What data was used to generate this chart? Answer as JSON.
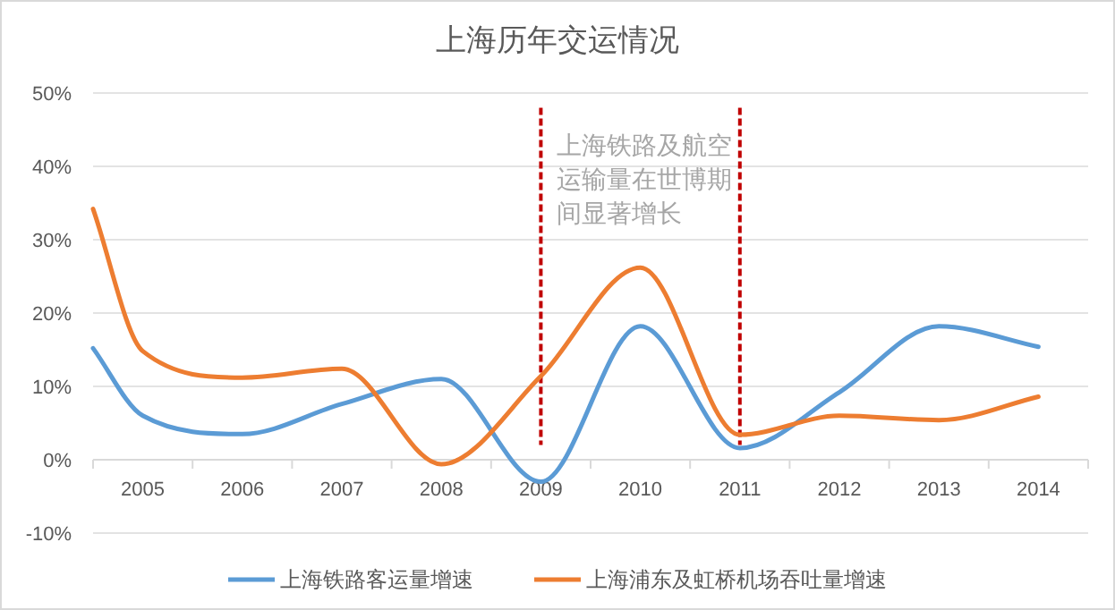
{
  "chart_data": {
    "type": "line",
    "title": "上海历年交运情况",
    "xlim": [
      2004.5,
      2014.5
    ],
    "xticks": [
      {
        "value": 2004.5,
        "label": null
      },
      {
        "value": 2005,
        "label": "2005"
      },
      {
        "value": 2005.5,
        "label": null
      },
      {
        "value": 2006,
        "label": "2006"
      },
      {
        "value": 2006.5,
        "label": null
      },
      {
        "value": 2007,
        "label": "2007"
      },
      {
        "value": 2007.5,
        "label": null
      },
      {
        "value": 2008,
        "label": "2008"
      },
      {
        "value": 2008.5,
        "label": null
      },
      {
        "value": 2009,
        "label": "2009"
      },
      {
        "value": 2009.5,
        "label": null
      },
      {
        "value": 2010,
        "label": "2010"
      },
      {
        "value": 2010.5,
        "label": null
      },
      {
        "value": 2011,
        "label": "2011"
      },
      {
        "value": 2011.5,
        "label": null
      },
      {
        "value": 2012,
        "label": "2012"
      },
      {
        "value": 2012.5,
        "label": null
      },
      {
        "value": 2013,
        "label": "2013"
      },
      {
        "value": 2013.5,
        "label": null
      },
      {
        "value": 2014,
        "label": "2014"
      },
      {
        "value": 2014.5,
        "label": null
      }
    ],
    "ylim": [
      -10,
      50
    ],
    "yticks": [
      {
        "value": -10,
        "label": "-10%"
      },
      {
        "value": 0,
        "label": "0%"
      },
      {
        "value": 10,
        "label": "10%"
      },
      {
        "value": 20,
        "label": "20%"
      },
      {
        "value": 30,
        "label": "30%"
      },
      {
        "value": 40,
        "label": "40%"
      },
      {
        "value": 50,
        "label": "50%"
      }
    ],
    "grid": "y",
    "legend": "bottom",
    "marker": "none",
    "series": [
      {
        "name": "上海铁路客运量增速",
        "color": "#5b9bd5",
        "x": [
          2004.5,
          2005,
          2006,
          2007,
          2008,
          2009,
          2010,
          2011,
          2012,
          2013,
          2014
        ],
        "values": [
          15.2,
          6,
          3.5,
          7.6,
          11,
          -3,
          18.2,
          1.6,
          9.2,
          18.2,
          15.4
        ]
      },
      {
        "name": "上海浦东及虹桥机场吞吐量增速",
        "color": "#ed7d31",
        "x": [
          2004.5,
          2005,
          2006,
          2007,
          2008,
          2009,
          2010,
          2011,
          2012,
          2013,
          2014
        ],
        "values": [
          34.2,
          14.8,
          11.2,
          12.4,
          -0.6,
          11.4,
          26.2,
          3.4,
          6,
          5.4,
          8.6
        ]
      }
    ],
    "ref_lines": [
      {
        "axis": "x",
        "value": 2009,
        "color": "#c00000",
        "line_style": "dashed"
      },
      {
        "axis": "x",
        "value": 2011,
        "color": "#c00000",
        "line_style": "dashed"
      }
    ],
    "annotations": [
      "上海铁路及航空运输量在世博期间显著增长"
    ]
  }
}
